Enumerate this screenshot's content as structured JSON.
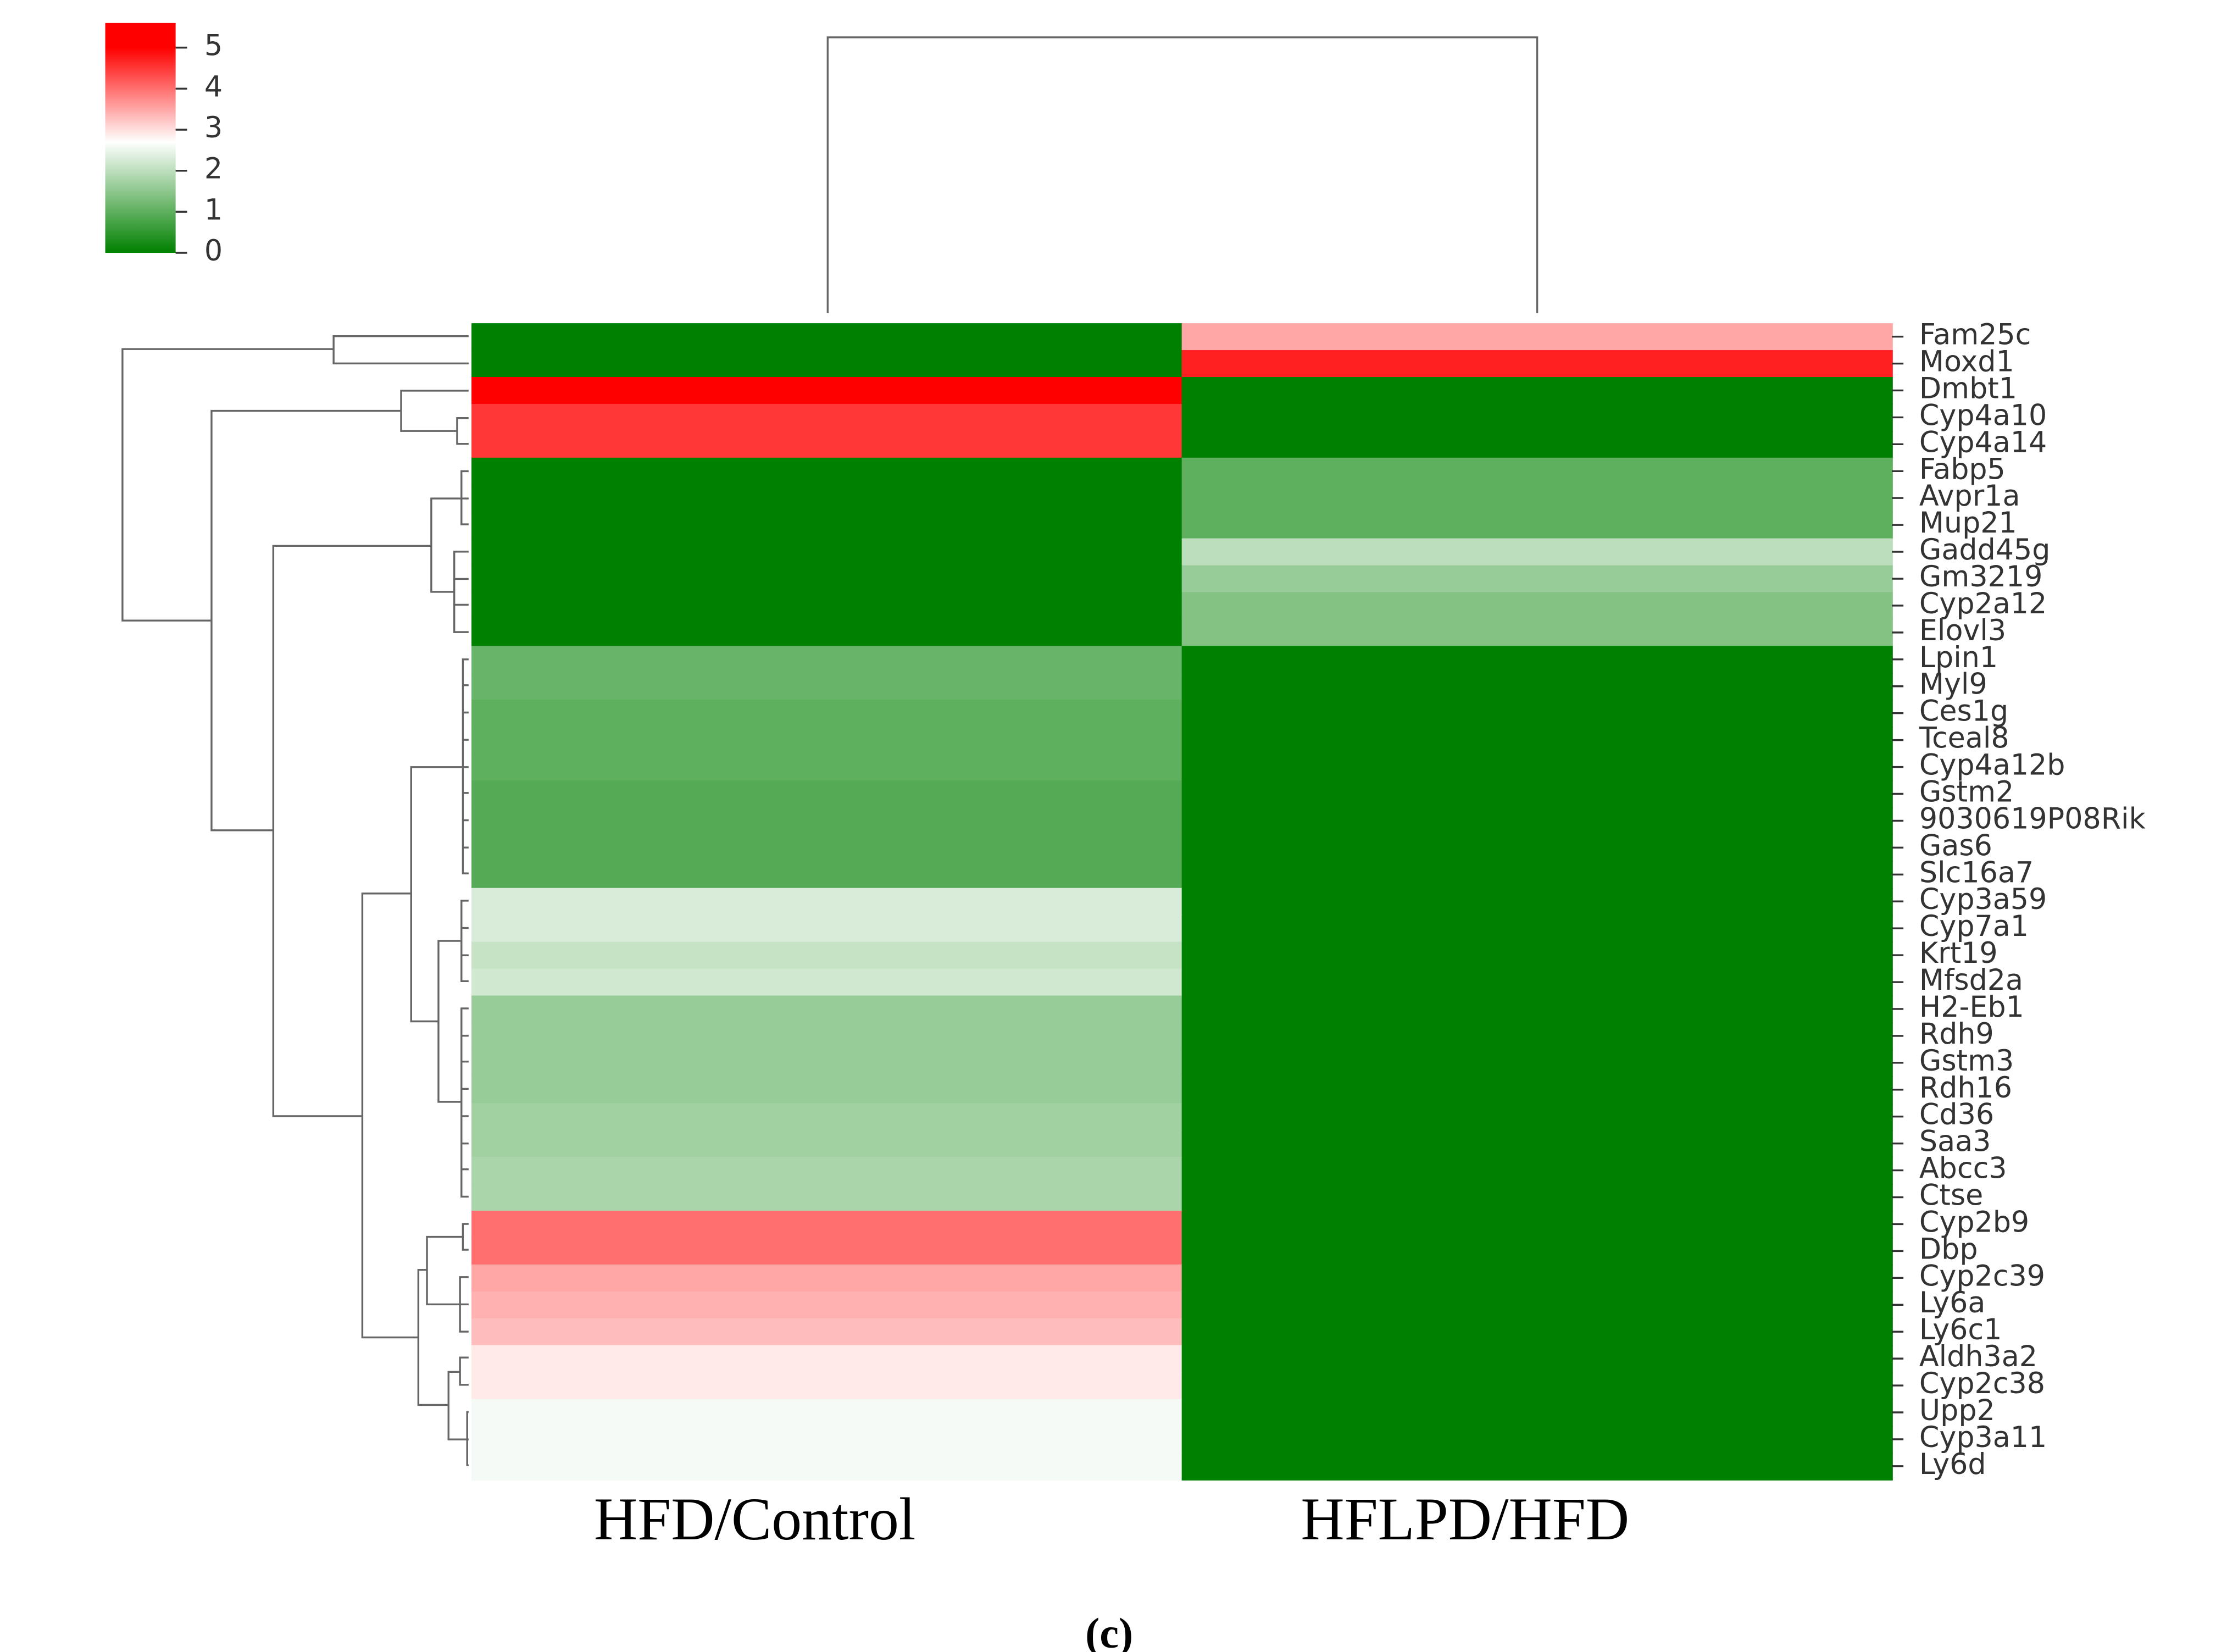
{
  "chart_data": {
    "type": "heatmap",
    "columns": [
      "HFD/Control",
      "HFLPD/HFD"
    ],
    "rows": [
      "Fam25c",
      "Moxd1",
      "Dmbt1",
      "Cyp4a10",
      "Cyp4a14",
      "Fabp5",
      "Avpr1a",
      "Mup21",
      "Gadd45g",
      "Gm3219",
      "Cyp2a12",
      "Elovl3",
      "Lpin1",
      "Myl9",
      "Ces1g",
      "Tceal8",
      "Cyp4a12b",
      "Gstm2",
      "9030619P08Rik",
      "Gas6",
      "Slc16a7",
      "Cyp3a59",
      "Cyp7a1",
      "Krt19",
      "Mfsd2a",
      "H2-Eb1",
      "Rdh9",
      "Gstm3",
      "Rdh16",
      "Cd36",
      "Saa3",
      "Abcc3",
      "Ctse",
      "Cyp2b9",
      "Dbp",
      "Cyp2c39",
      "Ly6a",
      "Ly6c1",
      "Aldh3a2",
      "Cyp2c38",
      "Upp2",
      "Cyp3a11",
      "Ly6d"
    ],
    "values": [
      [
        0,
        3.5
      ],
      [
        0,
        4.7
      ],
      [
        5,
        0
      ],
      [
        4.5,
        0
      ],
      [
        4.5,
        0
      ],
      [
        0,
        1
      ],
      [
        0,
        1
      ],
      [
        0,
        1
      ],
      [
        0,
        2
      ],
      [
        0,
        1.6
      ],
      [
        0,
        1.4
      ],
      [
        0,
        1.4
      ],
      [
        1.1,
        0
      ],
      [
        1.1,
        0
      ],
      [
        1,
        0
      ],
      [
        1,
        0
      ],
      [
        1,
        0
      ],
      [
        0.9,
        0
      ],
      [
        0.9,
        0
      ],
      [
        0.9,
        0
      ],
      [
        0.9,
        0
      ],
      [
        2.3,
        0
      ],
      [
        2.3,
        0
      ],
      [
        2.1,
        0
      ],
      [
        2.2,
        0
      ],
      [
        1.6,
        0
      ],
      [
        1.6,
        0
      ],
      [
        1.6,
        0
      ],
      [
        1.6,
        0
      ],
      [
        1.7,
        0
      ],
      [
        1.7,
        0
      ],
      [
        1.8,
        0
      ],
      [
        1.8,
        0
      ],
      [
        4,
        0
      ],
      [
        4,
        0
      ],
      [
        3.5,
        0
      ],
      [
        3.4,
        0
      ],
      [
        3.3,
        0
      ],
      [
        2.9,
        0
      ],
      [
        2.9,
        0
      ],
      [
        2.6,
        0
      ],
      [
        2.6,
        0
      ],
      [
        2.6,
        0
      ]
    ],
    "colors": [
      "#008000",
      "#ffffff",
      "#ff0000"
    ],
    "color_stops": [
      0,
      2.7,
      5
    ],
    "zlim": [
      0,
      5.6
    ],
    "zticks": [
      0,
      1,
      2,
      3,
      4,
      5
    ],
    "caption": "(c)"
  }
}
